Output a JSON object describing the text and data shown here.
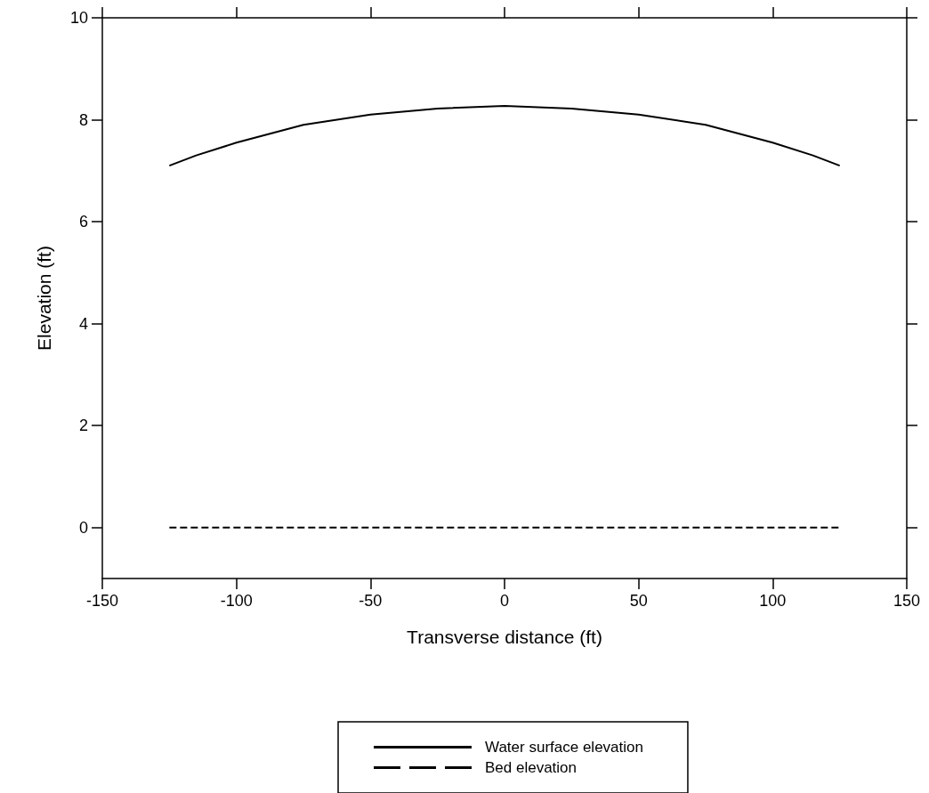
{
  "chart_data": {
    "type": "line",
    "xlabel": "Transverse distance (ft)",
    "ylabel": "Elevation (ft)",
    "xlim": [
      -150,
      150
    ],
    "xticks": [
      -150,
      -100,
      -50,
      0,
      50,
      100,
      150
    ],
    "ylim": [
      -1,
      10
    ],
    "yticks": [
      0,
      2,
      4,
      6,
      8,
      10
    ],
    "grid": false,
    "legend": "bottom",
    "marker": "none",
    "series": [
      {
        "name": "Water surface elevation",
        "color": "#000000",
        "line_style": "solid",
        "x": [
          -125,
          -115,
          -100,
          -75,
          -50,
          -25,
          0,
          25,
          50,
          75,
          100,
          115,
          125
        ],
        "values": [
          7.1,
          7.3,
          7.55,
          7.9,
          8.1,
          8.22,
          8.27,
          8.22,
          8.1,
          7.9,
          7.55,
          7.3,
          7.1
        ]
      },
      {
        "name": "Bed elevation",
        "color": "#000000",
        "line_style": "dashed",
        "x": [
          -125,
          125
        ],
        "values": [
          0,
          0
        ]
      }
    ]
  }
}
